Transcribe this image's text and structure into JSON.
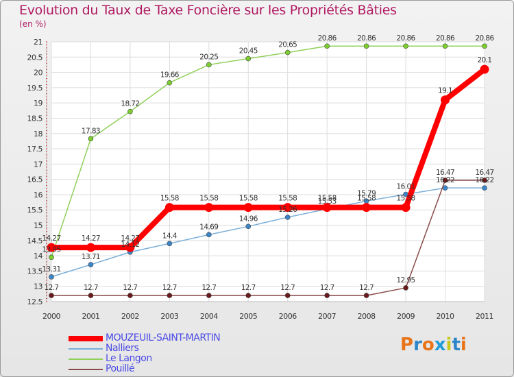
{
  "title": "Evolution du Taux de Taxe Foncière sur les Propriétés Bâties",
  "unit": "(en %)",
  "logo": "Proxiti",
  "logo_colors": [
    "#e8741a",
    "#2e86c8",
    "#e8741a",
    "#1f9bd6",
    "#c7c91e",
    "#2e86c8",
    "#e8741a"
  ],
  "chart_data": {
    "type": "line",
    "title": "Evolution du Taux de Taxe Foncière sur les Propriétés Bâties",
    "xlabel": "",
    "ylabel": "(en %)",
    "ylim": [
      12.5,
      21
    ],
    "yticks": [
      "12.5",
      "13",
      "13.5",
      "14",
      "14.5",
      "15",
      "15.5",
      "16",
      "16.5",
      "17",
      "17.5",
      "18",
      "18.5",
      "19",
      "19.5",
      "20",
      "20.5",
      "21"
    ],
    "categories": [
      "2000",
      "2001",
      "2002",
      "2003",
      "2004",
      "2005",
      "2006",
      "2007",
      "2008",
      "2009",
      "2010",
      "2011"
    ],
    "series": [
      {
        "name": "Le Langon",
        "color": "#90d05a",
        "marker": "#7ccf2c",
        "values": [
          13.95,
          17.83,
          18.72,
          19.66,
          20.25,
          20.45,
          20.65,
          20.86,
          20.86,
          20.86,
          20.86,
          20.86
        ],
        "labels": [
          "13.95",
          "17.83",
          "18.72",
          "19.66",
          "20.25",
          "20.45",
          "20.65",
          "20.86",
          "20.86",
          "20.86",
          "20.86",
          "20.86"
        ]
      },
      {
        "name": "Nalliers",
        "color": "#7aaed8",
        "marker": "#3b86c8",
        "values": [
          13.31,
          13.71,
          14.12,
          14.4,
          14.69,
          14.96,
          15.26,
          15.53,
          15.79,
          16.01,
          16.22,
          16.22
        ],
        "labels": [
          "13.31",
          "13.71",
          "14.12",
          "14.4",
          "14.69",
          "14.96",
          "15.26",
          "15.53",
          "15.79",
          "16.01",
          "16.22",
          "16.22"
        ]
      },
      {
        "name": "Pouillé",
        "color": "#8a4a4a",
        "marker": "#6a1a1a",
        "values": [
          12.7,
          12.7,
          12.7,
          12.7,
          12.7,
          12.7,
          12.7,
          12.7,
          12.7,
          12.95,
          16.47,
          16.47
        ],
        "labels": [
          "12.7",
          "12.7",
          "12.7",
          "12.7",
          "12.7",
          "12.7",
          "12.7",
          "12.7",
          "12.7",
          "12.95",
          "16.47",
          "16.47"
        ]
      },
      {
        "name": "MOUZEUIL-SAINT-MARTIN",
        "color": "#ff0000",
        "marker": "#ff0000",
        "values": [
          14.27,
          14.27,
          14.27,
          15.58,
          15.58,
          15.58,
          15.58,
          15.58,
          15.58,
          15.58,
          19.1,
          20.1
        ],
        "labels": [
          "14.27",
          "14.27",
          "14.27",
          "15.58",
          "15.58",
          "15.58",
          "15.58",
          "15.58",
          "15.58",
          "15.58",
          "19.1",
          "20.1"
        ]
      }
    ],
    "legend": [
      {
        "name": "MOUZEUIL-SAINT-MARTIN",
        "color": "#ff0000",
        "text_color": "#4a4ae6"
      },
      {
        "name": "Nalliers",
        "color": "#7aaed8",
        "text_color": "#4a4ae6"
      },
      {
        "name": "Le Langon",
        "color": "#90d05a",
        "text_color": "#4a4ae6"
      },
      {
        "name": "Pouillé",
        "color": "#8a4a4a",
        "text_color": "#4a4ae6"
      }
    ]
  }
}
